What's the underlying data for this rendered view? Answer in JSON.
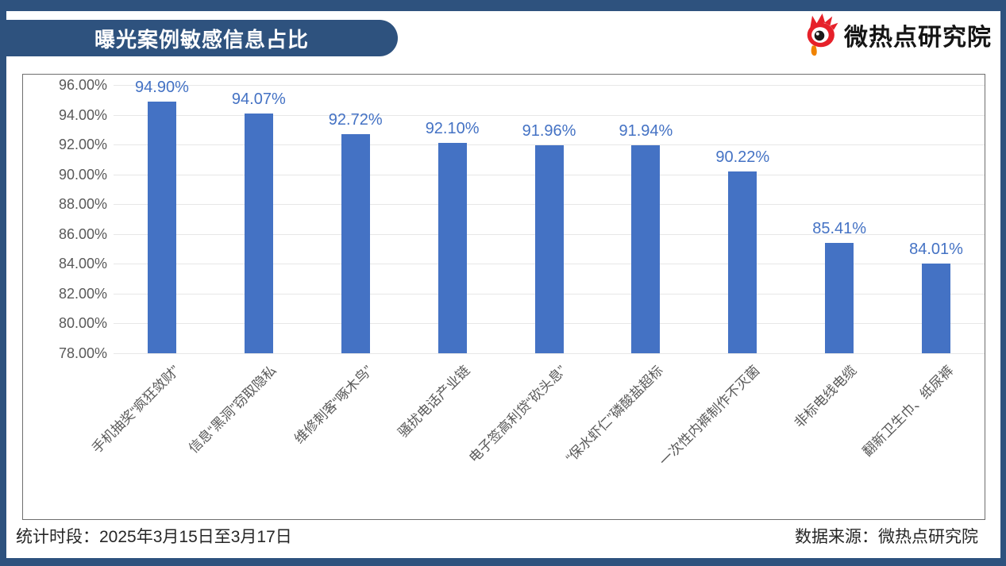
{
  "header": {
    "title": "曝光案例敏感信息占比"
  },
  "logo": {
    "text": "微热点研究院",
    "icon": "weibo-eye-icon",
    "flame_color": "#E6212A",
    "drop_color": "#F08300"
  },
  "footer": {
    "period": "统计时段：2025年3月15日至3月17日",
    "source": "数据来源：微热点研究院"
  },
  "theme": {
    "navy": "#2E527E",
    "bar_color": "#4472C4",
    "value_label_color": "#4472C4",
    "axis_text_color": "#595959",
    "gridline_color": "#E7E7E7"
  },
  "chart_data": {
    "type": "bar",
    "title": "曝光案例敏感信息占比",
    "xlabel": "",
    "ylabel": "",
    "categories": [
      "手机抽奖“疯狂敛财”",
      "信息“黑洞”窃取隐私",
      "维修刺客“啄木鸟”",
      "骚扰电话产业链",
      "电子签高利贷“砍头息”",
      "“保水虾仁”磷酸盐超标",
      "一次性内裤制作不灭菌",
      "非标电线电缆",
      "翻新卫生巾、纸尿裤"
    ],
    "values": [
      94.9,
      94.07,
      92.72,
      92.1,
      91.96,
      91.94,
      90.22,
      85.41,
      84.01
    ],
    "value_labels": [
      "94.90%",
      "94.07%",
      "92.72%",
      "92.10%",
      "91.96%",
      "91.94%",
      "90.22%",
      "85.41%",
      "84.01%"
    ],
    "ylim": [
      78,
      96
    ],
    "ytick_step": 2,
    "ytick_labels": [
      "96.00%",
      "94.00%",
      "92.00%",
      "90.00%",
      "88.00%",
      "86.00%",
      "84.00%",
      "82.00%",
      "80.00%",
      "78.00%"
    ],
    "grid": true,
    "legend": "none",
    "bar_color": "#4472C4"
  }
}
